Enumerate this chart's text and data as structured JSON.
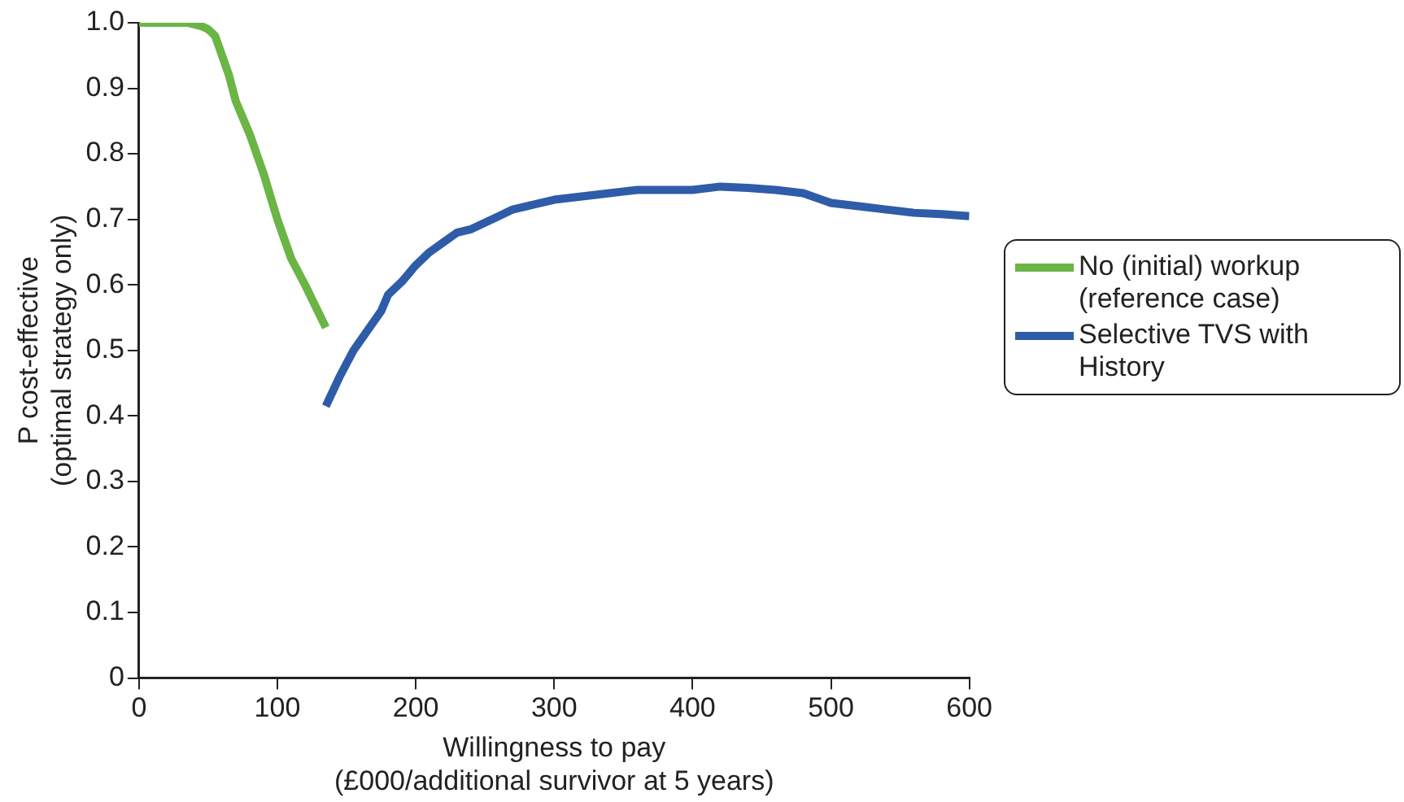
{
  "chart_data": {
    "type": "line",
    "xlabel": "Willingness to pay (£000/additional survivor at 5 years)",
    "ylabel": "P cost-effective (optimal strategy only)",
    "xlim": [
      0,
      600
    ],
    "xticks": [
      0,
      100,
      200,
      300,
      400,
      500,
      600
    ],
    "ylim": [
      0,
      1.0
    ],
    "yticks": [
      0,
      0.1,
      0.2,
      0.3,
      0.4,
      0.5,
      0.6,
      0.7,
      0.8,
      0.9,
      {
        "value": 1,
        "label": "1.0"
      }
    ],
    "grid": false,
    "legend": "right",
    "marker": "none",
    "line_style": "solid",
    "series": [
      {
        "name": "No (initial) workup (reference case)",
        "color": "#6ab545",
        "x": [
          0,
          35,
          45,
          50,
          55,
          60,
          65,
          70,
          80,
          90,
          100,
          110,
          120,
          135
        ],
        "values": [
          1.0,
          1.0,
          0.995,
          0.99,
          0.98,
          0.95,
          0.92,
          0.88,
          0.83,
          0.77,
          0.7,
          0.64,
          0.6,
          0.535
        ]
      },
      {
        "name": "Selective TVS with History",
        "color": "#2e5ca8",
        "x": [
          135,
          145,
          155,
          165,
          175,
          180,
          190,
          200,
          210,
          220,
          230,
          240,
          250,
          260,
          270,
          280,
          300,
          320,
          340,
          360,
          380,
          400,
          420,
          440,
          460,
          480,
          500,
          520,
          540,
          560,
          580,
          600
        ],
        "values": [
          0.415,
          0.46,
          0.5,
          0.53,
          0.56,
          0.585,
          0.605,
          0.63,
          0.65,
          0.665,
          0.68,
          0.685,
          0.695,
          0.705,
          0.715,
          0.72,
          0.73,
          0.735,
          0.74,
          0.745,
          0.745,
          0.745,
          0.75,
          0.748,
          0.745,
          0.74,
          0.725,
          0.72,
          0.715,
          0.71,
          0.708,
          0.705
        ]
      }
    ]
  }
}
